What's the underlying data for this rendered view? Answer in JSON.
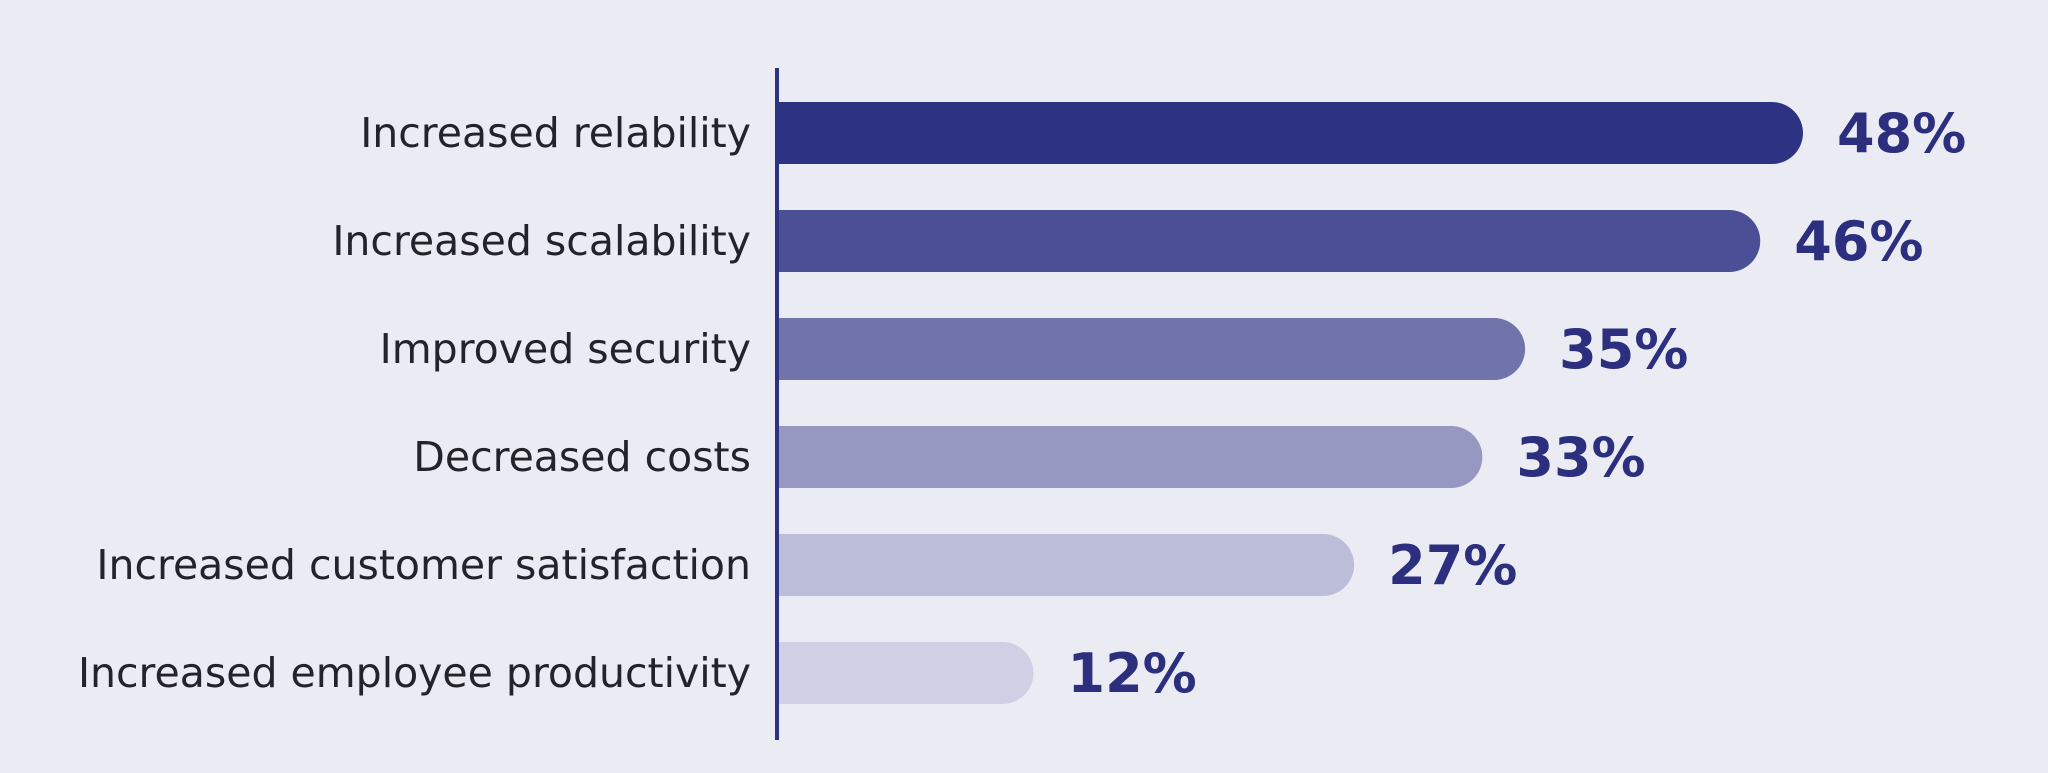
{
  "chart_data": {
    "type": "bar",
    "orientation": "horizontal",
    "title": "",
    "xlabel": "",
    "ylabel": "",
    "categories": [
      "Increased relability",
      "Increased scalability",
      "Improved security",
      "Decreased costs",
      "Increased customer satisfaction",
      "Increased employee productivity"
    ],
    "values": [
      48,
      46,
      35,
      33,
      27,
      12
    ],
    "value_labels": [
      "48%",
      "46%",
      "35%",
      "33%",
      "27%",
      "12%"
    ],
    "unit": "%",
    "xlim": [
      0,
      48
    ],
    "grid": false,
    "legend": "none",
    "colors": [
      "#2e3283",
      "#4b4f95",
      "#7174aa",
      "#9698c1",
      "#bcbdd8",
      "#cfd0e4"
    ],
    "axis_color": "#2e3283",
    "label_color": "#24232a",
    "value_label_color": "#2c2f7e"
  }
}
